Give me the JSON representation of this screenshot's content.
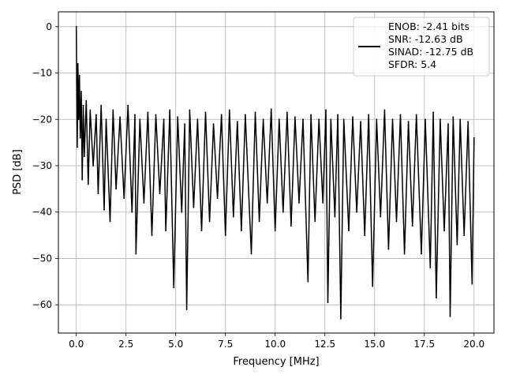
{
  "chart_data": {
    "type": "line",
    "xlabel": "Frequency [MHz]",
    "ylabel": "PSD [dB]",
    "xlim": [
      -0.9,
      21.0
    ],
    "ylim": [
      -66.1,
      3.2
    ],
    "xticks": [
      0.0,
      2.5,
      5.0,
      7.5,
      10.0,
      12.5,
      15.0,
      17.5,
      20.0
    ],
    "xtick_labels": [
      "0.0",
      "2.5",
      "5.0",
      "7.5",
      "10.0",
      "12.5",
      "15.0",
      "17.5",
      "20.0"
    ],
    "yticks": [
      0,
      -10,
      -20,
      -30,
      -40,
      -50,
      -60
    ],
    "ytick_labels": [
      "0",
      "−10",
      "−20",
      "−30",
      "−40",
      "−50",
      "−60"
    ],
    "grid": true,
    "legend_position": "upper right",
    "series": [
      {
        "name": "ENOB: -2.41 bits\nSNR: -12.63 dB\nSINAD: -12.75 dB\nSFDR: 5.4",
        "color": "#000000",
        "description": "noise-like PSD trace, 0 to 20 MHz, peak 0 dB at DC, floor mostly -22 to -36 dB",
        "points": [
          [
            0.0,
            0.0
          ],
          [
            0.02,
            -12.0
          ],
          [
            0.05,
            -26.0
          ],
          [
            0.08,
            -8.0
          ],
          [
            0.12,
            -20.0
          ],
          [
            0.16,
            -10.5
          ],
          [
            0.2,
            -24.0
          ],
          [
            0.25,
            -14.0
          ],
          [
            0.3,
            -33.0
          ],
          [
            0.35,
            -17.0
          ],
          [
            0.4,
            -28.0
          ],
          [
            0.5,
            -16.0
          ],
          [
            0.6,
            -34.0
          ],
          [
            0.7,
            -18.0
          ],
          [
            0.85,
            -30.0
          ],
          [
            1.0,
            -19.0
          ],
          [
            1.1,
            -36.0
          ],
          [
            1.25,
            -17.0
          ],
          [
            1.4,
            -39.5
          ],
          [
            1.5,
            -20.0
          ],
          [
            1.7,
            -42.0
          ],
          [
            1.85,
            -18.0
          ],
          [
            2.0,
            -35.0
          ],
          [
            2.2,
            -19.5
          ],
          [
            2.4,
            -37.0
          ],
          [
            2.6,
            -17.0
          ],
          [
            2.8,
            -40.0
          ],
          [
            2.95,
            -19.0
          ],
          [
            3.0,
            -49.0
          ],
          [
            3.2,
            -20.0
          ],
          [
            3.4,
            -38.0
          ],
          [
            3.6,
            -18.5
          ],
          [
            3.8,
            -45.0
          ],
          [
            4.0,
            -19.0
          ],
          [
            4.2,
            -36.0
          ],
          [
            4.4,
            -20.0
          ],
          [
            4.5,
            -44.0
          ],
          [
            4.7,
            -18.0
          ],
          [
            4.9,
            -56.3
          ],
          [
            5.1,
            -19.5
          ],
          [
            5.3,
            -40.0
          ],
          [
            5.45,
            -21.0
          ],
          [
            5.55,
            -61.0
          ],
          [
            5.7,
            -18.0
          ],
          [
            5.9,
            -39.0
          ],
          [
            6.1,
            -20.0
          ],
          [
            6.3,
            -44.0
          ],
          [
            6.5,
            -18.5
          ],
          [
            6.7,
            -42.0
          ],
          [
            6.9,
            -21.0
          ],
          [
            7.1,
            -37.0
          ],
          [
            7.3,
            -19.0
          ],
          [
            7.5,
            -45.0
          ],
          [
            7.7,
            -18.0
          ],
          [
            7.9,
            -41.0
          ],
          [
            8.1,
            -20.5
          ],
          [
            8.3,
            -44.0
          ],
          [
            8.5,
            -19.0
          ],
          [
            8.8,
            -49.0
          ],
          [
            9.0,
            -18.5
          ],
          [
            9.2,
            -42.0
          ],
          [
            9.4,
            -20.0
          ],
          [
            9.6,
            -38.0
          ],
          [
            9.8,
            -17.8
          ],
          [
            10.0,
            -44.0
          ],
          [
            10.2,
            -20.0
          ],
          [
            10.4,
            -40.0
          ],
          [
            10.6,
            -18.5
          ],
          [
            10.8,
            -43.0
          ],
          [
            11.0,
            -19.5
          ],
          [
            11.2,
            -38.0
          ],
          [
            11.4,
            -20.0
          ],
          [
            11.65,
            -55.0
          ],
          [
            11.8,
            -19.0
          ],
          [
            12.0,
            -42.0
          ],
          [
            12.2,
            -20.0
          ],
          [
            12.4,
            -38.0
          ],
          [
            12.55,
            -18.0
          ],
          [
            12.65,
            -59.5
          ],
          [
            12.8,
            -20.0
          ],
          [
            13.0,
            -41.0
          ],
          [
            13.15,
            -19.0
          ],
          [
            13.3,
            -63.0
          ],
          [
            13.45,
            -20.0
          ],
          [
            13.7,
            -44.0
          ],
          [
            13.9,
            -19.5
          ],
          [
            14.1,
            -40.0
          ],
          [
            14.3,
            -20.5
          ],
          [
            14.5,
            -45.0
          ],
          [
            14.7,
            -19.0
          ],
          [
            14.9,
            -56.0
          ],
          [
            15.1,
            -20.0
          ],
          [
            15.3,
            -41.0
          ],
          [
            15.5,
            -18.0
          ],
          [
            15.7,
            -48.0
          ],
          [
            15.9,
            -20.0
          ],
          [
            16.1,
            -42.0
          ],
          [
            16.3,
            -19.0
          ],
          [
            16.5,
            -49.0
          ],
          [
            16.7,
            -20.5
          ],
          [
            16.9,
            -43.0
          ],
          [
            17.1,
            -19.0
          ],
          [
            17.35,
            -49.0
          ],
          [
            17.55,
            -20.0
          ],
          [
            17.8,
            -52.0
          ],
          [
            17.95,
            -18.5
          ],
          [
            18.1,
            -58.5
          ],
          [
            18.3,
            -20.0
          ],
          [
            18.5,
            -44.0
          ],
          [
            18.7,
            -21.0
          ],
          [
            18.8,
            -62.5
          ],
          [
            18.95,
            -19.5
          ],
          [
            19.15,
            -47.0
          ],
          [
            19.3,
            -20.0
          ],
          [
            19.5,
            -45.0
          ],
          [
            19.7,
            -20.5
          ],
          [
            19.9,
            -55.5
          ],
          [
            20.0,
            -24.0
          ]
        ]
      }
    ]
  }
}
